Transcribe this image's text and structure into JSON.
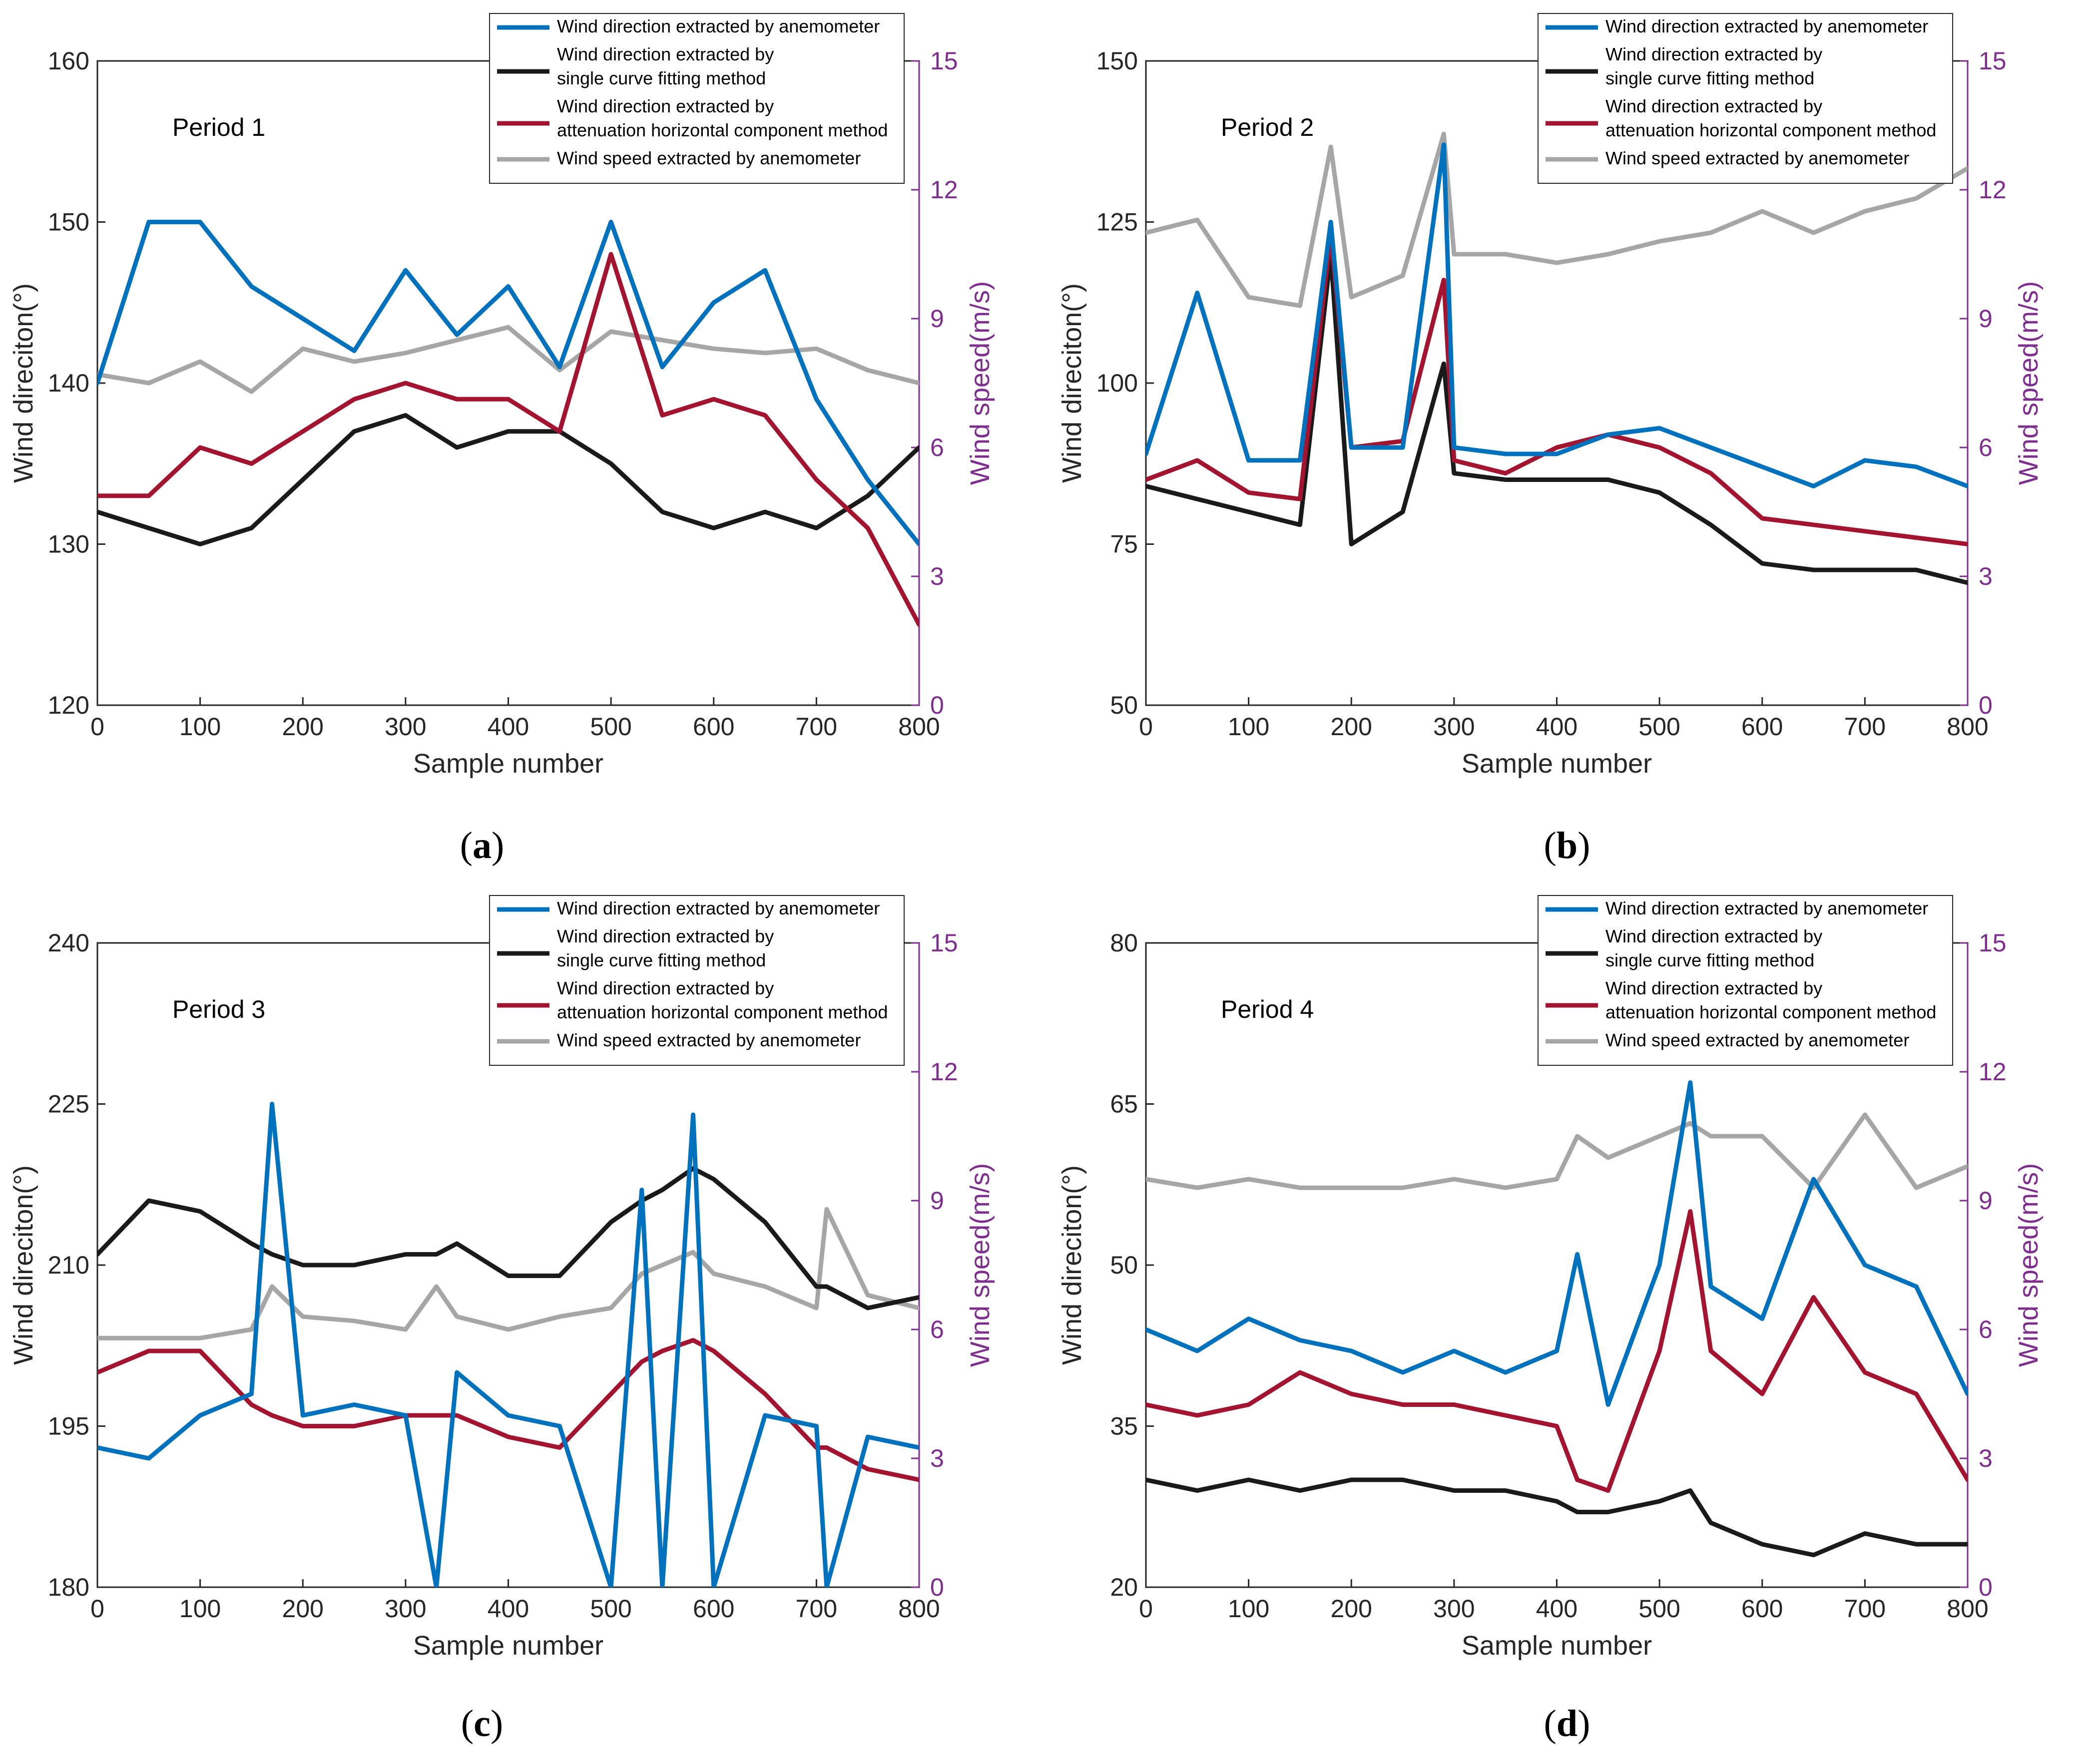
{
  "colors": {
    "anemometer_dir": "#0072BD",
    "single_curve": "#1a1a1a",
    "attenuation": "#A2142F",
    "wind_speed": "#A6A6A6",
    "right_axis": "#7E2F8E"
  },
  "shared": {
    "xlabel": "Sample number",
    "ylabel_left": "Wind direciton(°)",
    "ylabel_right": "Wind speed(m/s)",
    "xticks": [
      0,
      100,
      200,
      300,
      400,
      500,
      600,
      700,
      800
    ],
    "yticks_right": [
      0,
      3,
      6,
      9,
      12,
      15
    ],
    "legend": [
      {
        "name": "anemometer_dir",
        "lines": [
          "Wind direction extracted by anemometer"
        ]
      },
      {
        "name": "single_curve",
        "lines": [
          "Wind direction extracted by",
          "single curve fitting method"
        ]
      },
      {
        "name": "attenuation",
        "lines": [
          "Wind direction extracted by",
          "attenuation horizontal component method"
        ]
      },
      {
        "name": "wind_speed",
        "lines": [
          "Wind speed extracted by anemometer"
        ]
      }
    ]
  },
  "captions": [
    "a",
    "b",
    "c",
    "d"
  ],
  "chart_data": [
    {
      "type": "line",
      "title": "Period 1",
      "xlim": [
        0,
        800
      ],
      "ylim_left": [
        120,
        160
      ],
      "yticks_left": [
        120,
        130,
        140,
        150,
        160
      ],
      "ylim_right": [
        0,
        15
      ],
      "x": [
        0,
        50,
        100,
        150,
        200,
        250,
        300,
        350,
        400,
        450,
        500,
        550,
        600,
        650,
        700,
        750,
        800
      ],
      "series": [
        {
          "name": "Wind direction extracted by anemometer",
          "key": "anemometer_dir",
          "axis": "left",
          "values": [
            140,
            150,
            150,
            146,
            144,
            142,
            147,
            143,
            146,
            141,
            150,
            141,
            145,
            147,
            139,
            134,
            130
          ]
        },
        {
          "name": "Wind direction extracted by single curve fitting method",
          "key": "single_curve",
          "axis": "left",
          "values": [
            132,
            131,
            130,
            131,
            134,
            137,
            138,
            136,
            137,
            137,
            135,
            132,
            131,
            132,
            131,
            133,
            136
          ]
        },
        {
          "name": "Wind direction extracted by attenuation horizontal component method",
          "key": "attenuation",
          "axis": "left",
          "values": [
            133,
            133,
            136,
            135,
            137,
            139,
            140,
            139,
            139,
            137,
            148,
            138,
            139,
            138,
            134,
            131,
            125
          ]
        },
        {
          "name": "Wind speed extracted by anemometer",
          "key": "wind_speed",
          "axis": "right",
          "values": [
            7.7,
            7.5,
            8.0,
            7.3,
            8.3,
            8.0,
            8.2,
            8.5,
            8.8,
            7.8,
            8.7,
            8.5,
            8.3,
            8.2,
            8.3,
            7.8,
            7.5
          ]
        }
      ]
    },
    {
      "type": "line",
      "title": "Period 2",
      "xlim": [
        0,
        800
      ],
      "ylim_left": [
        50,
        150
      ],
      "yticks_left": [
        50,
        75,
        100,
        125,
        150
      ],
      "ylim_right": [
        0,
        15
      ],
      "x": [
        0,
        50,
        100,
        150,
        180,
        200,
        250,
        290,
        300,
        350,
        400,
        450,
        500,
        550,
        600,
        650,
        700,
        750,
        800
      ],
      "series": [
        {
          "name": "Wind direction extracted by anemometer",
          "key": "anemometer_dir",
          "axis": "left",
          "values": [
            89,
            114,
            88,
            88,
            125,
            90,
            90,
            137,
            90,
            89,
            89,
            92,
            93,
            90,
            87,
            84,
            88,
            87,
            84
          ]
        },
        {
          "name": "Wind direction extracted by single curve fitting method",
          "key": "single_curve",
          "axis": "left",
          "values": [
            84,
            82,
            80,
            78,
            120,
            75,
            80,
            103,
            86,
            85,
            85,
            85,
            83,
            78,
            72,
            71,
            71,
            71,
            69
          ]
        },
        {
          "name": "Wind direction extracted by attenuation horizontal component method",
          "key": "attenuation",
          "axis": "left",
          "values": [
            85,
            88,
            83,
            82,
            123,
            90,
            91,
            116,
            88,
            86,
            90,
            92,
            90,
            86,
            79,
            78,
            77,
            76,
            75
          ]
        },
        {
          "name": "Wind speed extracted by anemometer",
          "key": "wind_speed",
          "axis": "right",
          "values": [
            11.0,
            11.3,
            9.5,
            9.3,
            13.0,
            9.5,
            10.0,
            13.3,
            10.5,
            10.5,
            10.3,
            10.5,
            10.8,
            11.0,
            11.5,
            11.0,
            11.5,
            11.8,
            12.5
          ]
        }
      ]
    },
    {
      "type": "line",
      "title": "Period 3",
      "xlim": [
        0,
        800
      ],
      "ylim_left": [
        180,
        240
      ],
      "yticks_left": [
        180,
        195,
        210,
        225,
        240
      ],
      "ylim_right": [
        0,
        15
      ],
      "x": [
        0,
        50,
        100,
        150,
        170,
        200,
        250,
        300,
        330,
        350,
        400,
        450,
        500,
        530,
        550,
        580,
        600,
        650,
        700,
        710,
        750,
        800
      ],
      "series": [
        {
          "name": "Wind direction extracted by anemometer",
          "key": "anemometer_dir",
          "axis": "left",
          "values": [
            193,
            192,
            196,
            198,
            225,
            196,
            197,
            196,
            180,
            200,
            196,
            195,
            180,
            217,
            180,
            224,
            180,
            196,
            195,
            180,
            194,
            193
          ]
        },
        {
          "name": "Wind direction extracted by single curve fitting method",
          "key": "single_curve",
          "axis": "left",
          "values": [
            211,
            216,
            215,
            212,
            211,
            210,
            210,
            211,
            211,
            212,
            209,
            209,
            214,
            216,
            217,
            219,
            218,
            214,
            208,
            208,
            206,
            207
          ]
        },
        {
          "name": "Wind direction extracted by attenuation horizontal component method",
          "key": "attenuation",
          "axis": "left",
          "values": [
            200,
            202,
            202,
            197,
            196,
            195,
            195,
            196,
            196,
            196,
            194,
            193,
            198,
            201,
            202,
            203,
            202,
            198,
            193,
            193,
            191,
            190
          ]
        },
        {
          "name": "Wind speed extracted by anemometer",
          "key": "wind_speed",
          "axis": "right",
          "values": [
            5.8,
            5.8,
            5.8,
            6.0,
            7.0,
            6.3,
            6.2,
            6.0,
            7.0,
            6.3,
            6.0,
            6.3,
            6.5,
            7.3,
            7.5,
            7.8,
            7.3,
            7.0,
            6.5,
            8.8,
            6.8,
            6.5
          ]
        }
      ]
    },
    {
      "type": "line",
      "title": "Period 4",
      "xlim": [
        0,
        800
      ],
      "ylim_left": [
        20,
        80
      ],
      "yticks_left": [
        20,
        35,
        50,
        65,
        80
      ],
      "ylim_right": [
        0,
        15
      ],
      "x": [
        0,
        50,
        100,
        150,
        200,
        250,
        300,
        350,
        400,
        420,
        450,
        500,
        530,
        550,
        600,
        650,
        700,
        750,
        800
      ],
      "series": [
        {
          "name": "Wind direction extracted by anemometer",
          "key": "anemometer_dir",
          "axis": "left",
          "values": [
            44,
            42,
            45,
            43,
            42,
            40,
            42,
            40,
            42,
            51,
            37,
            50,
            67,
            48,
            45,
            58,
            50,
            48,
            38
          ]
        },
        {
          "name": "Wind direction extracted by single curve fitting method",
          "key": "single_curve",
          "axis": "left",
          "values": [
            30,
            29,
            30,
            29,
            30,
            30,
            29,
            29,
            28,
            27,
            27,
            28,
            29,
            26,
            24,
            23,
            25,
            24,
            24
          ]
        },
        {
          "name": "Wind direction extracted by attenuation horizontal component method",
          "key": "attenuation",
          "axis": "left",
          "values": [
            37,
            36,
            37,
            40,
            38,
            37,
            37,
            36,
            35,
            30,
            29,
            42,
            55,
            42,
            38,
            47,
            40,
            38,
            30
          ]
        },
        {
          "name": "Wind speed extracted by anemometer",
          "key": "wind_speed",
          "axis": "right",
          "values": [
            9.5,
            9.3,
            9.5,
            9.3,
            9.3,
            9.3,
            9.5,
            9.3,
            9.5,
            10.5,
            10.0,
            10.5,
            10.8,
            10.5,
            10.5,
            9.3,
            11.0,
            9.3,
            9.8
          ]
        }
      ]
    }
  ]
}
